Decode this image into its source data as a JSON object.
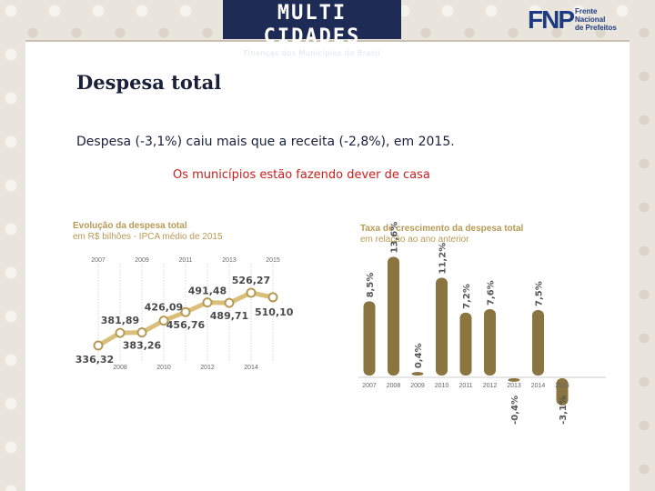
{
  "header": {
    "logo_main": "MULTI CIDADES",
    "logo_sub": "Finanças dos Municípios do Brasil",
    "fnp_mark": "FNP",
    "fnp_line1": "Frente",
    "fnp_line2": "Nacional",
    "fnp_line3": "de Prefeitos"
  },
  "slide": {
    "title": "Despesa total",
    "subtitle": "Despesa (-3,1%) caiu mais que a receita (-2,8%), em 2015.",
    "headline": "Os municípios estão fazendo  dever de casa"
  },
  "colors": {
    "gold": "#b89a55",
    "bar": "#8a7440",
    "line": "#d9bf7a",
    "dark": "#1d2b55",
    "red": "#c8201e"
  },
  "chart_data": [
    {
      "type": "line",
      "title": "Evolução da despesa total",
      "subtitle": "em R$ bilhões - IPCA médio de 2015",
      "x": [
        2007,
        2008,
        2009,
        2010,
        2011,
        2012,
        2013,
        2014,
        2015
      ],
      "values": [
        336.32,
        381.89,
        383.26,
        426.09,
        456.76,
        491.48,
        489.71,
        526.27,
        510.1
      ],
      "value_labels": [
        "336,32",
        "381,89",
        "383,26",
        "426,09",
        "456,76",
        "491,48",
        "489,71",
        "526,27",
        "510,10"
      ],
      "top_ticks": [
        "2007",
        "2009",
        "2011",
        "2013",
        "2015"
      ],
      "bottom_ticks": [
        "2008",
        "2010",
        "2012",
        "2014"
      ],
      "ylim": [
        300,
        560
      ]
    },
    {
      "type": "bar",
      "title": "Taxa de crescimento da despesa total",
      "subtitle": "em relação ao ano anterior",
      "categories": [
        "2007",
        "2008",
        "2009",
        "2010",
        "2011",
        "2012",
        "2013",
        "2014",
        "2015"
      ],
      "values": [
        8.5,
        13.6,
        0.4,
        11.2,
        7.2,
        7.6,
        -0.4,
        7.5,
        -3.1
      ],
      "value_labels": [
        "8,5%",
        "13,6%",
        "0,4%",
        "11,2%",
        "7,2%",
        "7,6%",
        "-0,4%",
        "7,5%",
        "-3,1%"
      ],
      "ylim": [
        -4,
        15
      ]
    }
  ]
}
